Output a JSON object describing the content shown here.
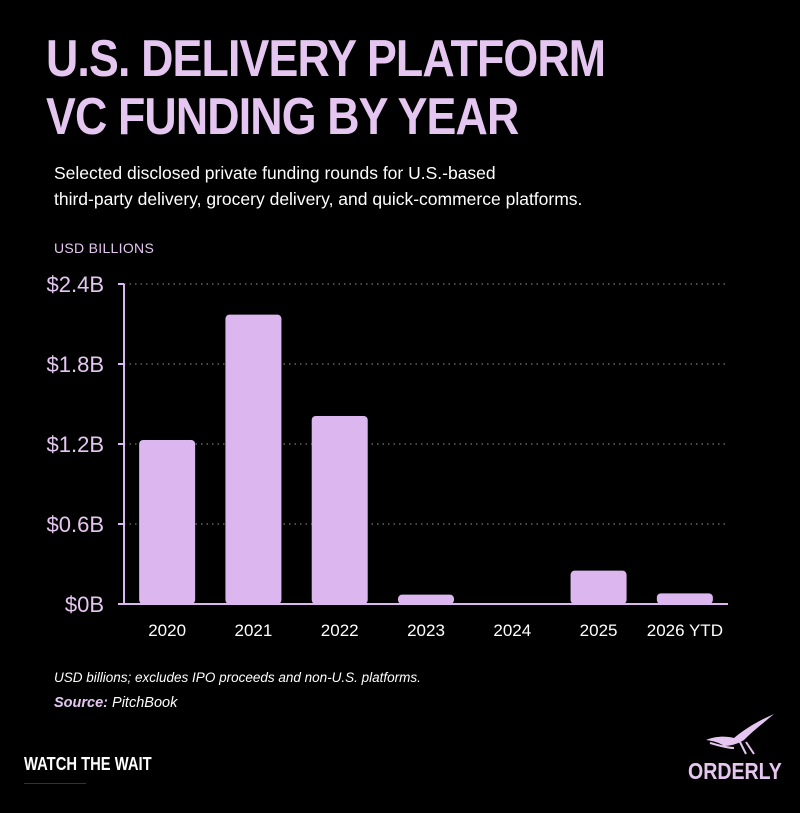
{
  "header": {
    "title_line1": "U.S. DELIVERY PLATFORM",
    "title_line2": "VC FUNDING BY YEAR",
    "subtitle_line1": "Selected disclosed private funding rounds for U.S.-based",
    "subtitle_line2": "third-party delivery, grocery delivery, and quick-commerce platforms."
  },
  "chart_data": {
    "type": "bar",
    "categories": [
      "2020",
      "2021",
      "2022",
      "2023",
      "2024",
      "2025",
      "2026 YTD"
    ],
    "values": [
      1.23,
      2.17,
      1.41,
      0.07,
      0.0,
      0.25,
      0.08
    ],
    "ylabel": "USD BILLIONS",
    "ylim": [
      0,
      2.4
    ],
    "yticks": [
      0,
      0.6,
      1.2,
      1.8,
      2.4
    ],
    "ytick_labels": [
      "$0B",
      "$0.6B",
      "$1.2B",
      "$1.8B",
      "$2.4B"
    ],
    "grid": true,
    "bar_color": "#dcb6ee",
    "grid_color": "#777777",
    "axis_color": "#dcb6ee",
    "tick_label_color": "#e4c6f0"
  },
  "footer": {
    "note": "USD billions; excludes IPO proceeds and non-U.S. platforms.",
    "source_label": "Source:",
    "source_value": "PitchBook",
    "brand_left": "WATCH THE WAIT",
    "brand_right": "ORDERLY"
  },
  "icons": {
    "logo": "bird-logo-icon"
  },
  "colors": {
    "background": "#000000",
    "accent": "#e4c6f0"
  }
}
